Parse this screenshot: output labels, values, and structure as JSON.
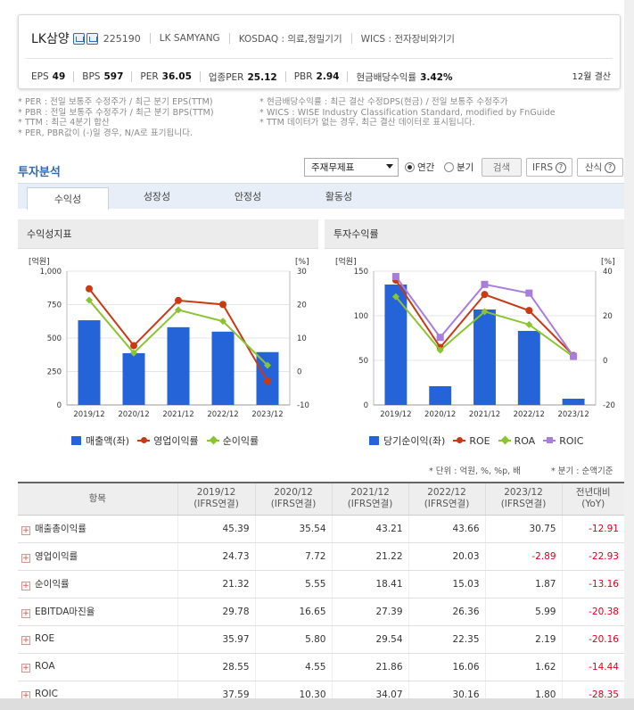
{
  "header": {
    "name": "LK삼양",
    "code": "225190",
    "eng": "LK SAMYANG",
    "market": "KOSDAQ : 의료,정밀기기",
    "wics": "WICS : 전자장비와기기",
    "metrics": [
      {
        "label": "EPS",
        "value": "49"
      },
      {
        "label": "BPS",
        "value": "597"
      },
      {
        "label": "PER",
        "value": "36.05"
      },
      {
        "label": "업종PER",
        "value": "25.12"
      },
      {
        "label": "PBR",
        "value": "2.94"
      },
      {
        "label": "현금배당수익률",
        "value": "3.42%"
      }
    ],
    "settlement": "12월 결산"
  },
  "notes_left": [
    "* PER : 전일 보통주 수정주가 / 최근 분기 EPS(TTM)",
    "* PBR : 전일 보통주 수정주가 / 최근 분기 BPS(TTM)",
    "* TTM : 최근 4분기 합산",
    "* PER, PBR값이 (-)일 경우, N/A로 표기됩니다."
  ],
  "notes_right": [
    "* 현금배당수익률 : 최근 결산 수정DPS(현금) / 전일 보통주 수정주가",
    "* WICS : WISE Industry Classification Standard, modified by FnGuide",
    "* TTM 데이터가 없는 경우, 최근 결산 데이터로 표시됩니다."
  ],
  "section": {
    "title": "투자분석",
    "select_value": "주재무제표",
    "radio_annual": "연간",
    "radio_quarter": "분기",
    "search_btn": "검색",
    "ifrs_btn": "IFRS",
    "formula_btn": "산식"
  },
  "tabs": [
    "수익성",
    "성장성",
    "안정성",
    "활동성"
  ],
  "panels": {
    "left_title": "수익성지표",
    "right_title": "투자수익률"
  },
  "chart_data": [
    {
      "type": "bar",
      "title": "수익성지표",
      "categories": [
        "2019/12",
        "2020/12",
        "2021/12",
        "2022/12",
        "2023/12"
      ],
      "left_unit": "[억원]",
      "right_unit": "[%]",
      "ylim_left": [
        0,
        1000
      ],
      "ylim_right": [
        -10,
        30
      ],
      "left_ticks": [
        "1,000",
        "750",
        "500",
        "250",
        "0"
      ],
      "right_ticks": [
        "30",
        "20",
        "10",
        "0",
        "-10"
      ],
      "grid": true,
      "series": [
        {
          "name": "매출액(좌)",
          "kind": "bar",
          "axis": "left",
          "color": "#2563d8",
          "values": [
            633,
            387,
            581,
            548,
            395
          ]
        },
        {
          "name": "영업이익률",
          "kind": "line",
          "axis": "right",
          "color": "#c83a16",
          "values": [
            24.73,
            7.72,
            21.22,
            20.03,
            -2.89
          ]
        },
        {
          "name": "순이익률",
          "kind": "line",
          "axis": "right",
          "color": "#8bc431",
          "values": [
            21.32,
            5.55,
            18.41,
            15.03,
            1.87
          ]
        }
      ]
    },
    {
      "type": "bar",
      "title": "투자수익률",
      "categories": [
        "2019/12",
        "2020/12",
        "2021/12",
        "2022/12",
        "2023/12"
      ],
      "left_unit": "[억원]",
      "right_unit": "[%]",
      "ylim_left": [
        0,
        150
      ],
      "ylim_right": [
        -20,
        40
      ],
      "left_ticks": [
        "150",
        "100",
        "50",
        "0"
      ],
      "right_ticks": [
        "40",
        "20",
        "0",
        "-20"
      ],
      "grid": true,
      "series": [
        {
          "name": "당기순이익(좌)",
          "kind": "bar",
          "axis": "left",
          "color": "#2563d8",
          "values": [
            135,
            21,
            107,
            83,
            7
          ]
        },
        {
          "name": "ROE",
          "kind": "line",
          "axis": "right",
          "color": "#c83a16",
          "values": [
            35.97,
            5.8,
            29.54,
            22.35,
            2.19
          ]
        },
        {
          "name": "ROA",
          "kind": "line",
          "axis": "right",
          "color": "#8bc431",
          "values": [
            28.55,
            4.55,
            21.86,
            16.06,
            1.62
          ]
        },
        {
          "name": "ROIC",
          "kind": "line",
          "axis": "right",
          "color": "#a87ddb",
          "values": [
            37.59,
            10.3,
            34.07,
            30.16,
            1.8
          ]
        }
      ]
    }
  ],
  "unit_note": "* 단위 : 억원, %, %p, 배",
  "period_note": "* 분기 : 순액기준",
  "table": {
    "headers": [
      {
        "l1": "항목",
        "l2": ""
      },
      {
        "l1": "2019/12",
        "l2": "(IFRS연결)"
      },
      {
        "l1": "2020/12",
        "l2": "(IFRS연결)"
      },
      {
        "l1": "2021/12",
        "l2": "(IFRS연결)"
      },
      {
        "l1": "2022/12",
        "l2": "(IFRS연결)"
      },
      {
        "l1": "2023/12",
        "l2": "(IFRS연결)"
      },
      {
        "l1": "전년대비",
        "l2": "(YoY)"
      }
    ],
    "rows": [
      {
        "label": "매출총이익률",
        "values": [
          "45.39",
          "35.54",
          "43.21",
          "43.66",
          "30.75"
        ],
        "yoy": "-12.91"
      },
      {
        "label": "영업이익률",
        "values": [
          "24.73",
          "7.72",
          "21.22",
          "20.03",
          "-2.89"
        ],
        "yoy": "-22.93"
      },
      {
        "label": "순이익률",
        "values": [
          "21.32",
          "5.55",
          "18.41",
          "15.03",
          "1.87"
        ],
        "yoy": "-13.16"
      },
      {
        "label": "EBITDA마진율",
        "values": [
          "29.78",
          "16.65",
          "27.39",
          "26.36",
          "5.99"
        ],
        "yoy": "-20.38"
      },
      {
        "label": "ROE",
        "values": [
          "35.97",
          "5.80",
          "29.54",
          "22.35",
          "2.19"
        ],
        "yoy": "-20.16"
      },
      {
        "label": "ROA",
        "values": [
          "28.55",
          "4.55",
          "21.86",
          "16.06",
          "1.62"
        ],
        "yoy": "-14.44"
      },
      {
        "label": "ROIC",
        "values": [
          "37.59",
          "10.30",
          "34.07",
          "30.16",
          "1.80"
        ],
        "yoy": "-28.35"
      }
    ]
  }
}
